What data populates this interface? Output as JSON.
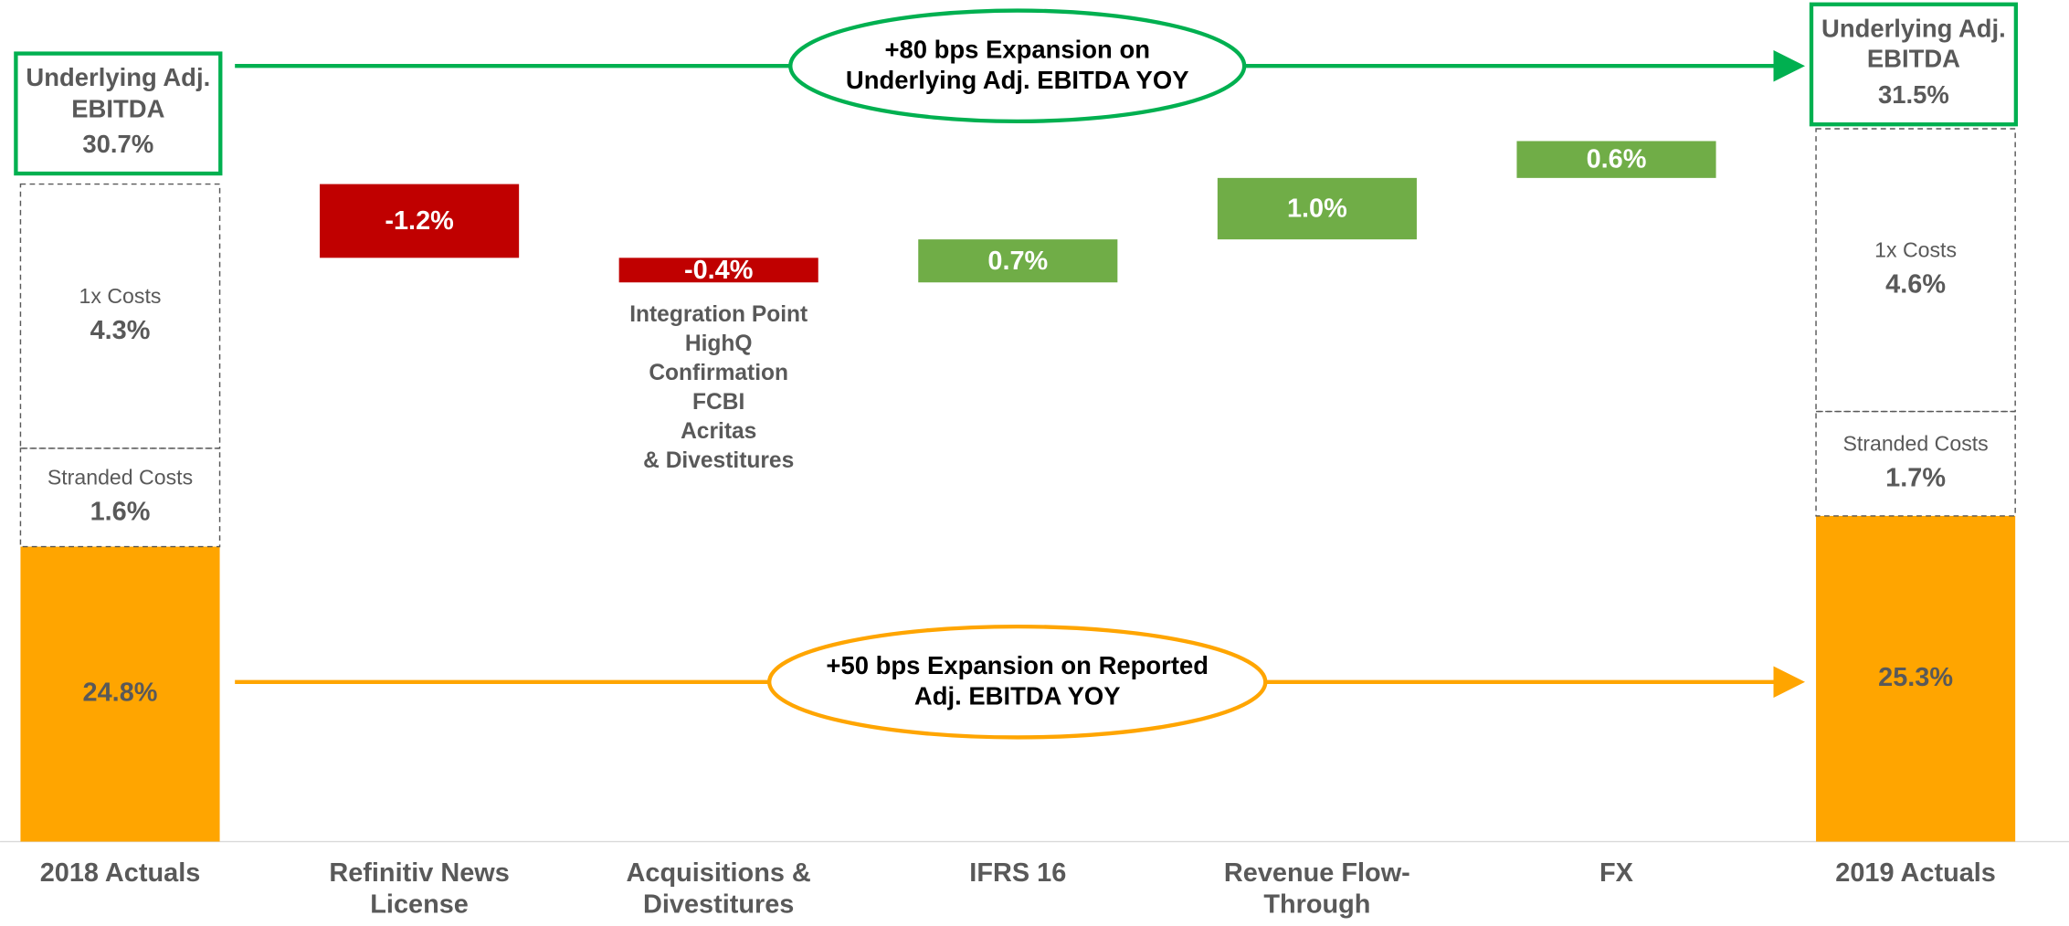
{
  "chart_data": {
    "type": "waterfall",
    "categories": [
      "2018 Actuals",
      "Refinitiv News License",
      "Acquisitions & Divestitures",
      "IFRS 16",
      "Revenue Flow-Through",
      "FX",
      "2019 Actuals"
    ],
    "ylim": [
      20,
      32
    ],
    "start": {
      "segments": [
        {
          "value": 24.8,
          "value_label": "24.8%",
          "color": "#ffa500"
        },
        {
          "name": "Stranded Costs",
          "value": 1.6,
          "value_label": "1.6%"
        },
        {
          "name": "1x Costs",
          "value": 4.3,
          "value_label": "4.3%"
        }
      ],
      "total_label": "Underlying Adj. EBITDA",
      "total": 30.7,
      "total_value_label": "30.7%",
      "total_color": "#00b050"
    },
    "end": {
      "segments": [
        {
          "value": 25.3,
          "value_label": "25.3%",
          "color": "#ffa500"
        },
        {
          "name": "Stranded Costs",
          "value": 1.7,
          "value_label": "1.7%"
        },
        {
          "name": "1x Costs",
          "value": 4.6,
          "value_label": "4.6%"
        }
      ],
      "total_label": "Underlying Adj. EBITDA",
      "total": 31.5,
      "total_value_label": "31.5%",
      "total_color": "#00b050"
    },
    "steps": {
      "values": [
        -1.2,
        -0.4,
        0.7,
        1.0,
        0.6
      ],
      "value_labels": [
        "-1.2%",
        "-0.4%",
        "0.7%",
        "1.0%",
        "0.6%"
      ],
      "increase_color": "#70ad47",
      "decrease_color": "#c00000",
      "note_lines": [
        "Integration Point",
        "HighQ",
        "Confirmation",
        "FCBI",
        "Acritas",
        "& Divestitures"
      ]
    },
    "annotations": [
      {
        "text": "+80 bps Expansion on Underlying Adj. EBITDA YOY",
        "color": "#00b050"
      },
      {
        "text": "+50 bps Expansion on Reported Adj. EBITDA YOY",
        "color": "#ffa500"
      }
    ]
  }
}
